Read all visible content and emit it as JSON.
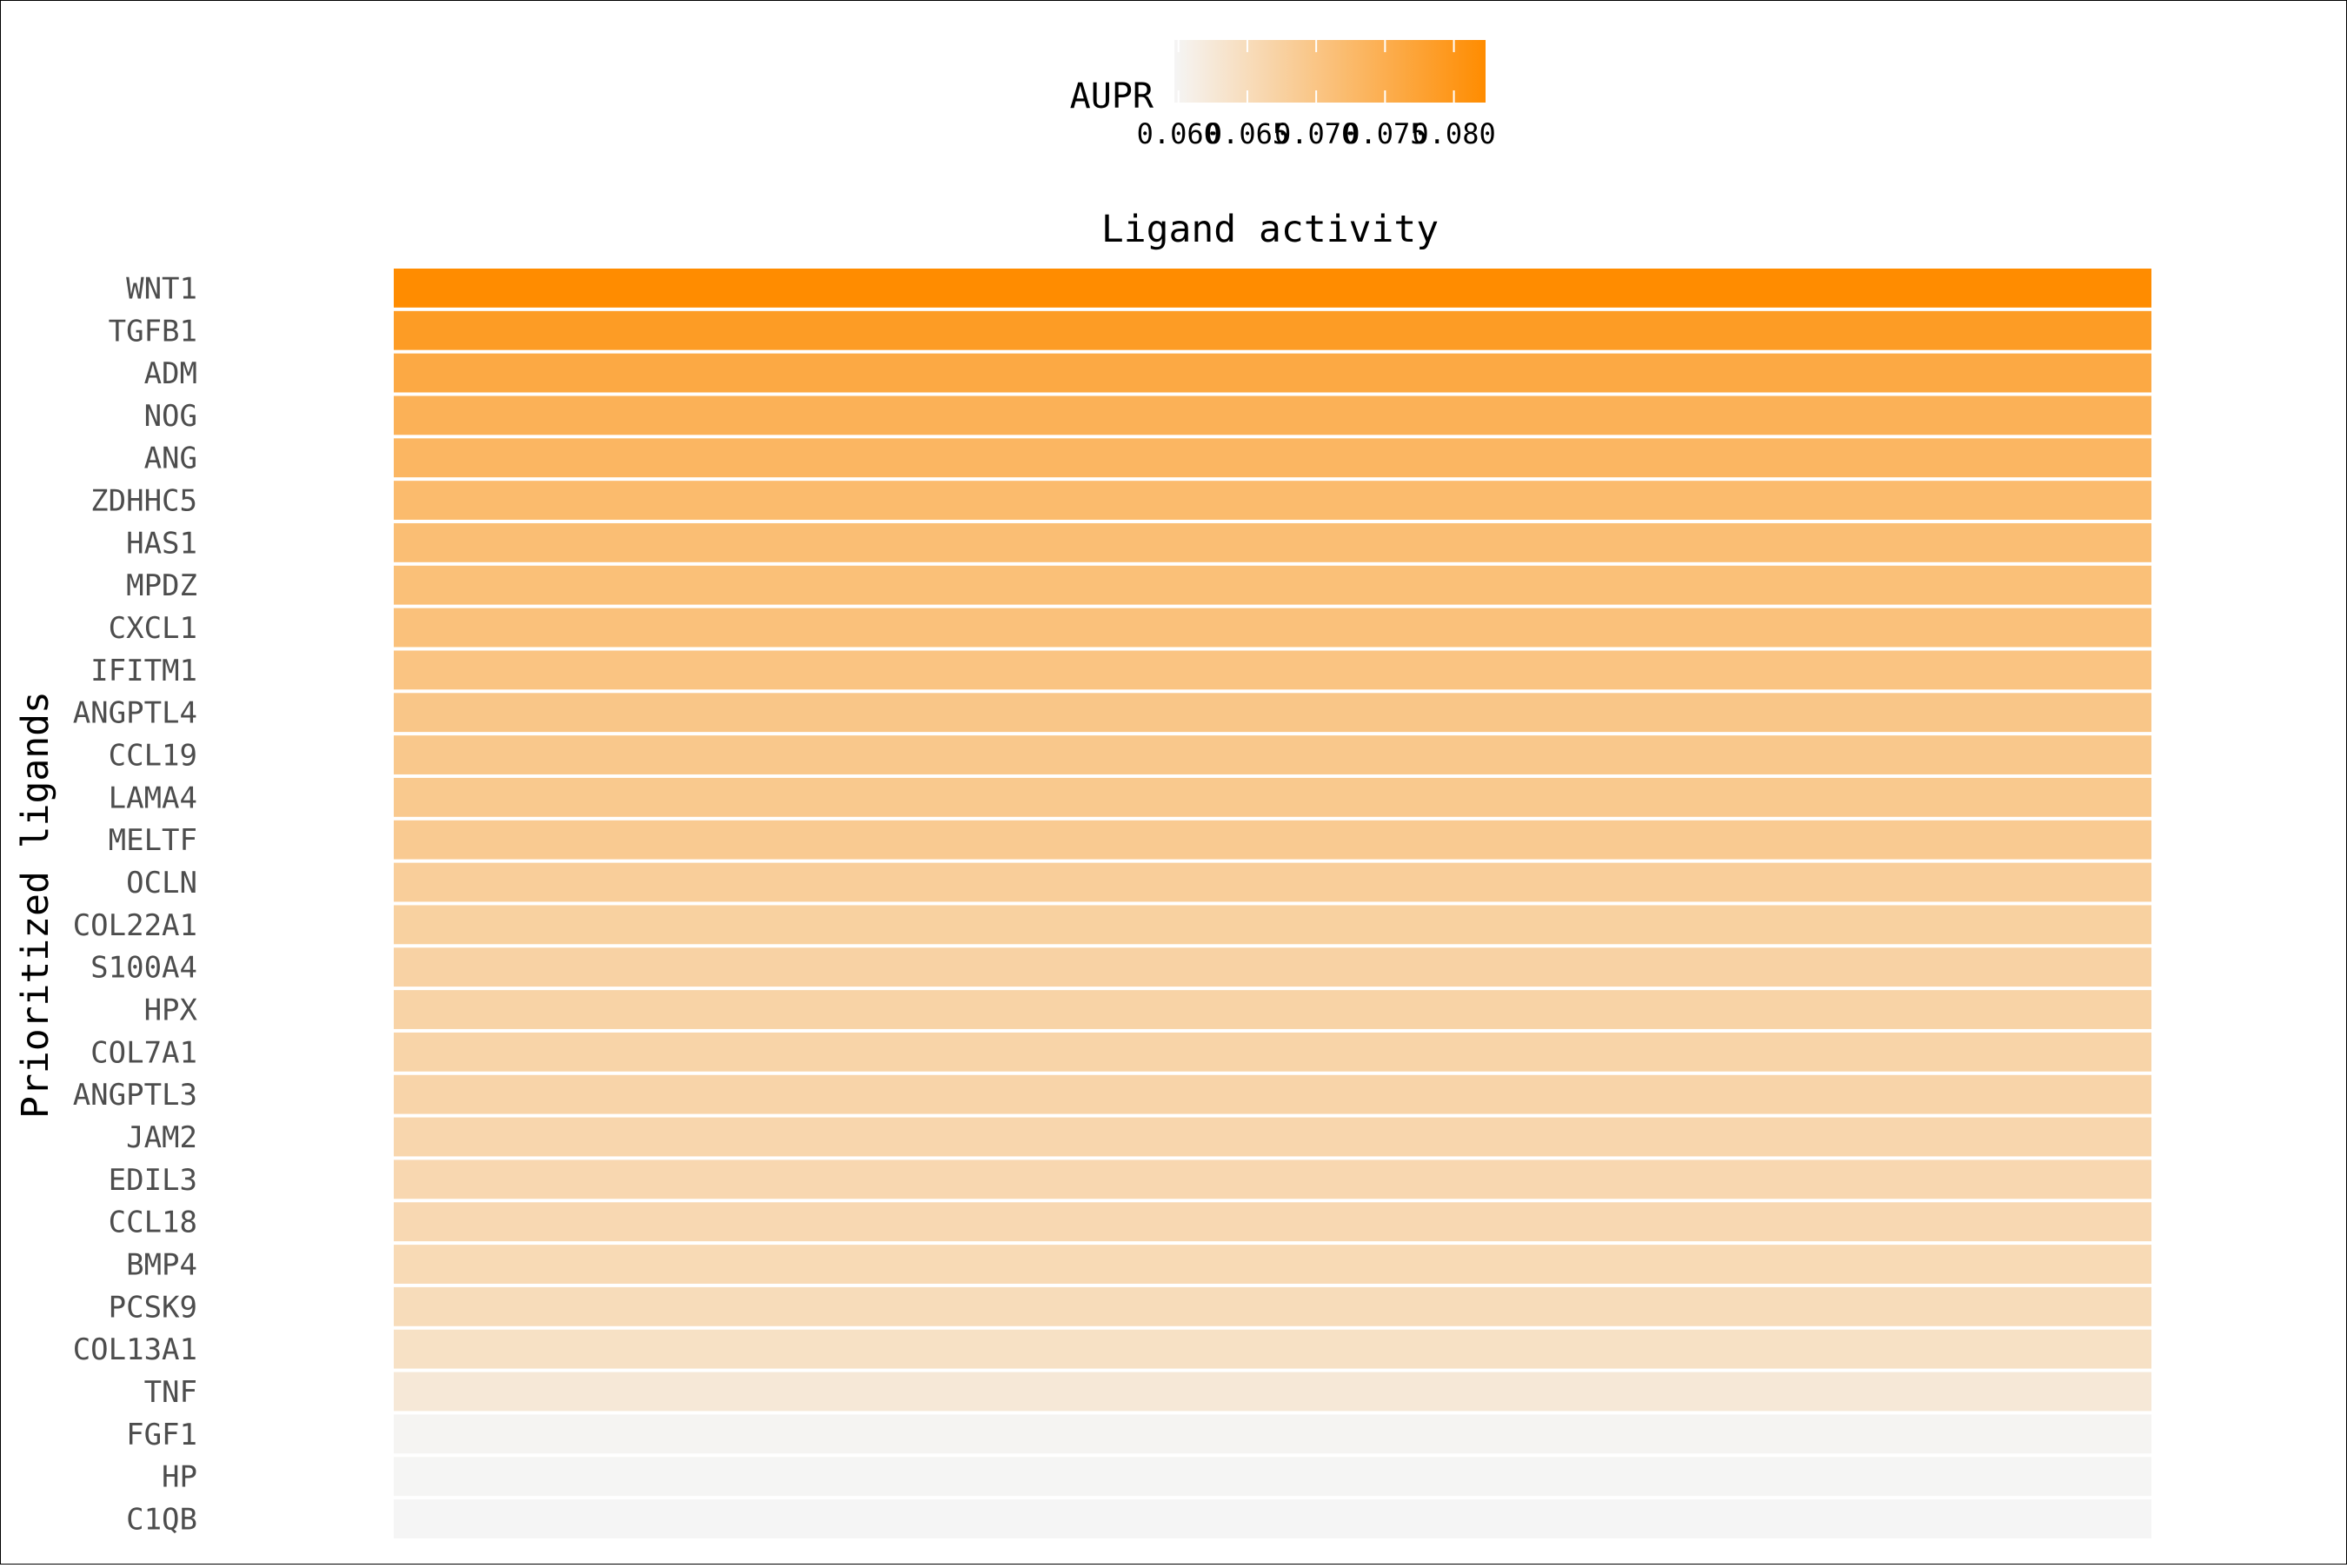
{
  "chart_data": {
    "type": "heatmap",
    "title": "Ligand activity",
    "ylabel": "Prioritized ligands",
    "xlabel": "",
    "legend": {
      "title": "AUPR",
      "placement": "top",
      "ticks": [
        "0.060",
        "0.065",
        "0.070",
        "0.075",
        "0.080"
      ],
      "range": [
        0.0597,
        0.0823
      ],
      "low_color": "#f5f5f5",
      "high_color": "#ff8c00"
    },
    "categories": [
      "WNT1",
      "TGFB1",
      "ADM",
      "NOG",
      "ANG",
      "ZDHHC5",
      "HAS1",
      "MPDZ",
      "CXCL1",
      "IFITM1",
      "ANGPTL4",
      "CCL19",
      "LAMA4",
      "MELTF",
      "OCLN",
      "COL22A1",
      "S100A4",
      "HPX",
      "COL7A1",
      "ANGPTL3",
      "JAM2",
      "EDIL3",
      "CCL18",
      "BMP4",
      "PCSK9",
      "COL13A1",
      "TNF",
      "FGF1",
      "HP",
      "C1QB"
    ],
    "values": [
      0.0823,
      0.0789,
      0.076,
      0.0743,
      0.0733,
      0.0722,
      0.0716,
      0.0712,
      0.071,
      0.0703,
      0.0698,
      0.0694,
      0.0692,
      0.0689,
      0.0681,
      0.0675,
      0.0672,
      0.067,
      0.0668,
      0.0667,
      0.0663,
      0.0661,
      0.0659,
      0.0656,
      0.0651,
      0.0641,
      0.0625,
      0.06,
      0.0598,
      0.0597
    ]
  }
}
